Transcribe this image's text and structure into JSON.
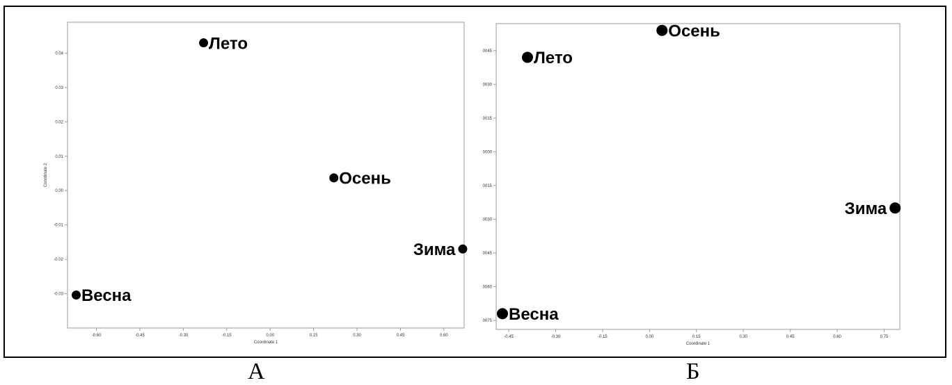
{
  "captions": {
    "a": "А",
    "b": "Б"
  },
  "chart_data": [
    {
      "type": "scatter",
      "xlabel": "Coordinate 1",
      "ylabel": "Coordinate 2",
      "xlim": [
        -0.7,
        0.67
      ],
      "ylim": [
        -0.04,
        0.049
      ],
      "xticks": [
        "-0.60",
        "-0.45",
        "-0.30",
        "-0.15",
        "0.00",
        "0.15",
        "0.30",
        "0.45",
        "0.60"
      ],
      "xtick_values": [
        -0.6,
        -0.45,
        -0.3,
        -0.15,
        0.0,
        0.15,
        0.3,
        0.45,
        0.6
      ],
      "yticks": [
        "0.04",
        "0.03",
        "0.02",
        "0.01",
        "0.00",
        "-0.01",
        "-0.02",
        "-0.03"
      ],
      "ytick_values": [
        0.04,
        0.03,
        0.02,
        0.01,
        0.0,
        -0.01,
        -0.02,
        -0.03
      ],
      "points": [
        {
          "label": "Лето",
          "x": -0.23,
          "y": 0.043,
          "label_side": "right"
        },
        {
          "label": "Осень",
          "x": 0.22,
          "y": 0.0037,
          "label_side": "right"
        },
        {
          "label": "Зима",
          "x": 0.665,
          "y": -0.017,
          "label_side": "left"
        },
        {
          "label": "Весна",
          "x": -0.67,
          "y": -0.0304,
          "label_side": "right"
        }
      ],
      "grid": false,
      "point_color": "#000000"
    },
    {
      "type": "scatter",
      "xlabel": "Coordinate 1",
      "ylabel": "Coordinate 2",
      "xlim": [
        -0.49,
        0.8
      ],
      "ylim": [
        -0.0079,
        0.0057
      ],
      "xticks": [
        "-0.45",
        "-0.30",
        "-0.15",
        "0.00",
        "0.15",
        "0.30",
        "0.45",
        "0.60",
        "0.75"
      ],
      "xtick_values": [
        -0.45,
        -0.3,
        -0.15,
        0.0,
        0.15,
        0.3,
        0.45,
        0.6,
        0.75
      ],
      "yticks": [
        "0.0045",
        "0.0030",
        "0.0015",
        "0.0000",
        "-0.0015",
        "-0.0030",
        "-0.0045",
        "-0.0060",
        "-0.0075"
      ],
      "ytick_values": [
        0.0045,
        0.003,
        0.0015,
        0.0,
        -0.0015,
        -0.003,
        -0.0045,
        -0.006,
        -0.0075
      ],
      "points": [
        {
          "label": "Осень",
          "x": 0.04,
          "y": 0.0054,
          "label_side": "right"
        },
        {
          "label": "Лето",
          "x": -0.39,
          "y": 0.0042,
          "label_side": "right"
        },
        {
          "label": "Зима",
          "x": 0.785,
          "y": -0.0025,
          "label_side": "left"
        },
        {
          "label": "Весна",
          "x": -0.47,
          "y": -0.0072,
          "label_side": "right"
        }
      ],
      "grid": false,
      "point_color": "#000000"
    }
  ]
}
